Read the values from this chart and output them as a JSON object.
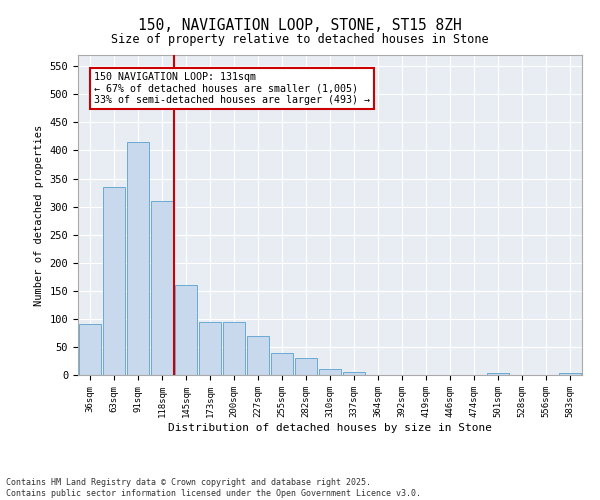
{
  "title_line1": "150, NAVIGATION LOOP, STONE, ST15 8ZH",
  "title_line2": "Size of property relative to detached houses in Stone",
  "xlabel": "Distribution of detached houses by size in Stone",
  "ylabel": "Number of detached properties",
  "bar_color": "#c8d9ed",
  "bar_edge_color": "#6aaad4",
  "background_color": "#e8edf4",
  "categories": [
    "36sqm",
    "63sqm",
    "91sqm",
    "118sqm",
    "145sqm",
    "173sqm",
    "200sqm",
    "227sqm",
    "255sqm",
    "282sqm",
    "310sqm",
    "337sqm",
    "364sqm",
    "392sqm",
    "419sqm",
    "446sqm",
    "474sqm",
    "501sqm",
    "528sqm",
    "556sqm",
    "583sqm"
  ],
  "values": [
    90,
    335,
    415,
    310,
    160,
    95,
    95,
    70,
    40,
    30,
    10,
    5,
    0,
    0,
    0,
    0,
    0,
    3,
    0,
    0,
    3
  ],
  "red_line_x": 3.5,
  "annotation_text": "150 NAVIGATION LOOP: 131sqm\n← 67% of detached houses are smaller (1,005)\n33% of semi-detached houses are larger (493) →",
  "annotation_box_color": "#ffffff",
  "annotation_box_edge": "#cc0000",
  "red_line_color": "#cc0000",
  "ylim": [
    0,
    570
  ],
  "yticks": [
    0,
    50,
    100,
    150,
    200,
    250,
    300,
    350,
    400,
    450,
    500,
    550
  ],
  "footer_line1": "Contains HM Land Registry data © Crown copyright and database right 2025.",
  "footer_line2": "Contains public sector information licensed under the Open Government Licence v3.0."
}
